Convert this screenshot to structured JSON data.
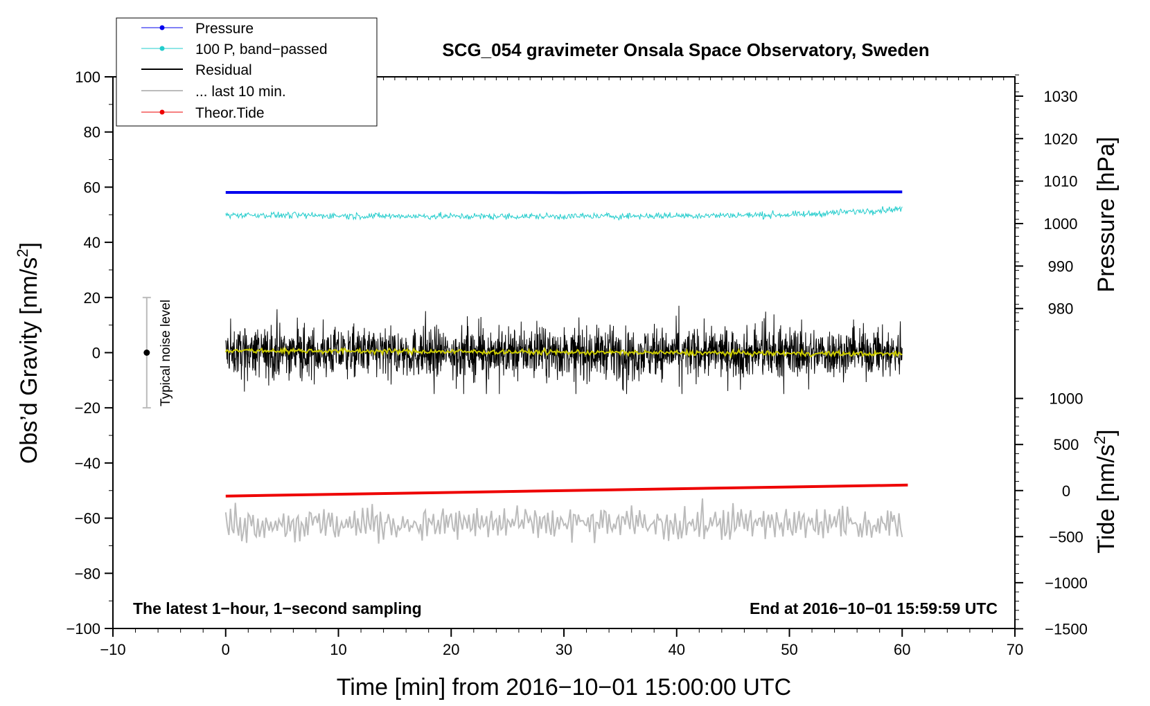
{
  "chart_data": {
    "type": "line",
    "title": "SCG_054 gravimeter Onsala Space Observatory, Sweden",
    "xlabel": "Time [min] from 2016−10−01 15:00:00 UTC",
    "ylabel_left": "Obs’d Gravity [nm/s2]",
    "ylabel_left_parts": [
      "Obs’d Gravity [nm/s",
      "2",
      "]"
    ],
    "ylabel_pressure": "Pressure [hPa]",
    "ylabel_tide_parts": [
      "Tide [nm/s",
      "2",
      "]"
    ],
    "xlim": [
      -10,
      70
    ],
    "ylim": [
      -100,
      100
    ],
    "x_ticks": [
      -10,
      0,
      10,
      20,
      30,
      40,
      50,
      60,
      70
    ],
    "x_tick_labels": [
      "−10",
      "0",
      "10",
      "20",
      "30",
      "40",
      "50",
      "60",
      "70"
    ],
    "y_ticks": [
      -100,
      -80,
      -60,
      -40,
      -20,
      0,
      20,
      40,
      60,
      80,
      100
    ],
    "y_tick_labels": [
      "−100",
      "−80",
      "−60",
      "−40",
      "−20",
      "0",
      "20",
      "40",
      "60",
      "80",
      "100"
    ],
    "pressure_axis": {
      "ticks": [
        980,
        990,
        1000,
        1010,
        1020,
        1030
      ],
      "tick_labels": [
        "980",
        "990",
        "1000",
        "1010",
        "1020",
        "1030"
      ],
      "left_value_at_980": 16,
      "left_units_per_hpa": 1.54
    },
    "tide_axis": {
      "ticks": [
        -1500,
        -1000,
        -500,
        0,
        500,
        1000
      ],
      "tick_labels": [
        "−1500",
        "−1000",
        "−500",
        "0",
        "500",
        "1000"
      ],
      "left_value_at_0": -50,
      "left_units_per_nms2": 0.1
    },
    "legend": {
      "position": "top-left",
      "entries": [
        {
          "label": "Pressure",
          "color": "#0000ee",
          "marker": true
        },
        {
          "label": "100 P, band−passed",
          "color": "#22cccc",
          "marker": true
        },
        {
          "label": "Residual",
          "color": "#000000",
          "marker": false
        },
        {
          "label": "... last 10 min.",
          "color": "#bbbbbb",
          "marker": false
        },
        {
          "label": "Theor.Tide",
          "color": "#ee0000",
          "marker": true
        }
      ]
    },
    "series": [
      {
        "name": "Pressure",
        "color": "#0000ee",
        "style": "flat",
        "x_range": [
          0,
          60
        ],
        "y_start": 58.1,
        "y_end": 58.3,
        "hpa_approx": 1007.8
      },
      {
        "name": "100 P, band-passed",
        "color": "#22cccc",
        "style": "noisy",
        "x_range": [
          0,
          60
        ],
        "center": 50,
        "amplitude": 1.3,
        "end_value": 51.7
      },
      {
        "name": "Residual",
        "color": "#000000",
        "style": "noisy",
        "x_range": [
          0,
          60
        ],
        "center": 0,
        "amplitude": 8,
        "peak_max": 17,
        "peak_min": -15
      },
      {
        "name": "Residual smoothed",
        "color": "#cccc00",
        "style": "smooth",
        "x_range": [
          0,
          60
        ],
        "y_start": 0.8,
        "y_end": -0.5
      },
      {
        "name": "... last 10 min.",
        "color": "#bbbbbb",
        "style": "noisy",
        "x_range": [
          0,
          60
        ],
        "center": -62,
        "amplitude": 6
      },
      {
        "name": "Theor.Tide",
        "color": "#ee0000",
        "style": "linear",
        "x_range": [
          0,
          60.5
        ],
        "y_start": -52,
        "y_end": -48,
        "tide_start_nms2": -20,
        "tide_end_nms2": 20
      }
    ],
    "noise_bar": {
      "x": -7,
      "center": 0,
      "low": -20,
      "high": 20,
      "label": "Typical noise level"
    },
    "annotations": {
      "bottom_left": "The latest 1−hour, 1−second sampling",
      "bottom_right": "End at 2016−10−01 15:59:59 UTC"
    }
  },
  "colors": {
    "pressure": "#0000ee",
    "bandpassed": "#22cccc",
    "residual": "#000000",
    "smooth": "#cccc00",
    "last10": "#bbbbbb",
    "tide": "#ee0000",
    "noise_bar": "#bbbbbb"
  }
}
